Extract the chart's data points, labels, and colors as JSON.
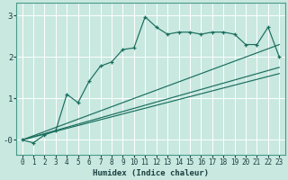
{
  "xlabel": "Humidex (Indice chaleur)",
  "bg_color": "#c8e8e0",
  "grid_color": "#b0d8d0",
  "line_color": "#1a6e5e",
  "xlim": [
    -0.5,
    23.5
  ],
  "ylim": [
    -0.35,
    3.3
  ],
  "yticks": [
    0,
    1,
    2,
    3
  ],
  "ytick_labels": [
    "-0",
    "1",
    "2",
    "3"
  ],
  "xticks": [
    0,
    1,
    2,
    3,
    4,
    5,
    6,
    7,
    8,
    9,
    10,
    11,
    12,
    13,
    14,
    15,
    16,
    17,
    18,
    19,
    20,
    21,
    22,
    23
  ],
  "series1_x": [
    0,
    1,
    2,
    3,
    4,
    5,
    6,
    7,
    8,
    9,
    10,
    11,
    12,
    13,
    14,
    15,
    16,
    17,
    18,
    19,
    20,
    21,
    22,
    23
  ],
  "series1_y": [
    0.0,
    -0.07,
    0.12,
    0.22,
    1.1,
    0.9,
    1.42,
    1.78,
    1.88,
    2.18,
    2.22,
    2.97,
    2.72,
    2.55,
    2.6,
    2.6,
    2.55,
    2.6,
    2.6,
    2.55,
    2.3,
    2.3,
    2.72,
    2.0
  ],
  "series2_x": [
    0,
    23
  ],
  "series2_y": [
    0.0,
    2.3
  ],
  "series3_x": [
    0,
    23
  ],
  "series3_y": [
    0.0,
    1.75
  ],
  "series4_x": [
    0,
    23
  ],
  "series4_y": [
    0.0,
    1.6
  ]
}
